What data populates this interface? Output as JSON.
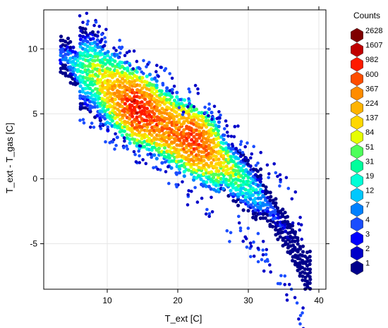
{
  "chart_data": {
    "type": "heatmap",
    "subtype": "hexbin",
    "title": "",
    "xlabel": "T_ext [C]",
    "ylabel": "T_ext - T_gas [C]",
    "xlim": [
      1,
      41
    ],
    "ylim": [
      -8.5,
      13
    ],
    "x_ticks": [
      10,
      20,
      30,
      40
    ],
    "y_ticks": [
      -5,
      0,
      5,
      10
    ],
    "grid": true,
    "legend_position": "right",
    "legend": {
      "title": "Counts",
      "levels": [
        "2628",
        "1607",
        "982",
        "600",
        "367",
        "224",
        "137",
        "84",
        "51",
        "31",
        "19",
        "12",
        "7",
        "4",
        "3",
        "2",
        "1"
      ],
      "colors": [
        "#7f0000",
        "#bf0000",
        "#ff1a00",
        "#ff4d00",
        "#ff8c00",
        "#ffb300",
        "#ffd700",
        "#e6ff00",
        "#4dff5a",
        "#00ff9c",
        "#00ffd6",
        "#00c8ff",
        "#0080ff",
        "#1a4dff",
        "#0000ff",
        "#0000c8",
        "#00008b"
      ]
    },
    "density_ridge": [
      {
        "x": 4,
        "y": 9.5,
        "count": 7
      },
      {
        "x": 6,
        "y": 8.5,
        "count": 31
      },
      {
        "x": 8,
        "y": 8.2,
        "count": 84
      },
      {
        "x": 10,
        "y": 7.0,
        "count": 224
      },
      {
        "x": 12,
        "y": 6.2,
        "count": 600
      },
      {
        "x": 14,
        "y": 5.5,
        "count": 1607
      },
      {
        "x": 16,
        "y": 5.0,
        "count": 982
      },
      {
        "x": 18,
        "y": 4.2,
        "count": 600
      },
      {
        "x": 20,
        "y": 3.5,
        "count": 600
      },
      {
        "x": 22,
        "y": 3.0,
        "count": 982
      },
      {
        "x": 24,
        "y": 2.5,
        "count": 600
      },
      {
        "x": 26,
        "y": 1.5,
        "count": 224
      },
      {
        "x": 28,
        "y": 0.5,
        "count": 84
      },
      {
        "x": 30,
        "y": -0.5,
        "count": 31
      },
      {
        "x": 32,
        "y": -1.5,
        "count": 12
      },
      {
        "x": 34,
        "y": -3.0,
        "count": 4
      },
      {
        "x": 36,
        "y": -4.5,
        "count": 2
      },
      {
        "x": 38,
        "y": -7.0,
        "count": 1
      }
    ]
  }
}
